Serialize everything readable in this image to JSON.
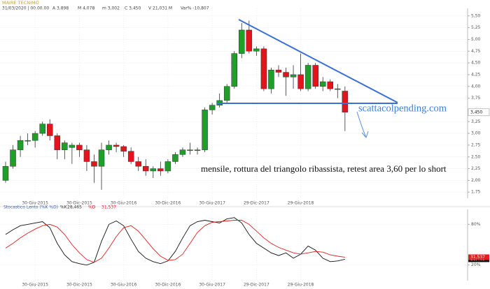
{
  "header": {
    "instrument": "MAIRE TECNIMO",
    "date": "31/03/2020 | 00.00.00",
    "open": "A 3,898",
    "high": "M 4,078",
    "low": "m 3,002",
    "close": "C 3,450",
    "volume": "V 21,031 M",
    "change": "Var% -10,807"
  },
  "annotations": {
    "site": "scattacolpending.com",
    "note": "mensile, rottura del triangolo ribassista, retest area 3,60 per lo short"
  },
  "chart_data": [
    {
      "type": "candlestick",
      "categories": [
        null,
        null,
        null,
        null,
        "30-Giu-2015",
        null,
        null,
        null,
        null,
        null,
        "30-Dic-2015",
        null,
        null,
        null,
        null,
        null,
        "30-Giu-2016",
        null,
        null,
        null,
        null,
        null,
        "30-Dic-2016",
        null,
        null,
        null,
        null,
        null,
        "30-Giu-2017",
        null,
        null,
        null,
        null,
        null,
        "29-Dic-2017",
        null,
        null,
        null,
        null,
        null,
        "29-Giu-2018",
        null,
        null,
        null,
        null,
        null,
        null
      ],
      "open": [
        2.0,
        2.3,
        2.65,
        2.85,
        2.85,
        3.0,
        3.2,
        2.95,
        2.65,
        2.7,
        2.75,
        2.65,
        2.4,
        2.3,
        2.65,
        2.75,
        2.72,
        2.62,
        2.4,
        2.3,
        2.2,
        2.25,
        2.2,
        2.4,
        2.55,
        2.65,
        2.65,
        2.65,
        3.5,
        3.6,
        3.7,
        4.0,
        4.7,
        5.2,
        4.75,
        4.8,
        3.95,
        4.35,
        4.3,
        4.2,
        4.25,
        3.95,
        4.45,
        4.0,
        4.1,
        3.95,
        3.9
      ],
      "high": [
        2.4,
        2.75,
        2.95,
        3.0,
        3.05,
        3.25,
        3.3,
        3.0,
        2.85,
        2.8,
        2.8,
        2.75,
        2.55,
        2.8,
        2.85,
        2.8,
        2.75,
        2.7,
        2.5,
        2.45,
        2.3,
        2.4,
        2.45,
        2.6,
        2.7,
        2.8,
        2.7,
        3.55,
        3.65,
        3.85,
        4.05,
        4.75,
        5.35,
        5.4,
        4.85,
        4.85,
        4.4,
        4.45,
        4.4,
        4.45,
        4.7,
        4.5,
        4.5,
        4.2,
        4.15,
        4.05,
        4.0
      ],
      "low": [
        1.95,
        2.25,
        2.5,
        2.75,
        2.7,
        2.95,
        2.85,
        2.45,
        2.45,
        2.35,
        2.5,
        2.2,
        1.95,
        1.8,
        2.55,
        2.6,
        2.5,
        2.35,
        2.2,
        2.1,
        2.05,
        2.1,
        2.15,
        2.35,
        2.5,
        2.55,
        2.55,
        2.6,
        3.4,
        3.55,
        3.65,
        3.95,
        4.6,
        4.7,
        4.65,
        3.9,
        3.85,
        4.2,
        3.8,
        3.95,
        3.9,
        3.9,
        3.95,
        3.9,
        3.9,
        3.75,
        3.05
      ],
      "close": [
        2.3,
        2.65,
        2.85,
        2.85,
        3.0,
        3.2,
        2.95,
        2.65,
        2.8,
        2.75,
        2.65,
        2.4,
        2.3,
        2.65,
        2.75,
        2.72,
        2.62,
        2.4,
        2.3,
        2.2,
        2.25,
        2.2,
        2.4,
        2.55,
        2.65,
        2.65,
        2.65,
        3.5,
        3.6,
        3.7,
        4.0,
        4.7,
        5.2,
        4.75,
        4.8,
        3.95,
        4.35,
        4.3,
        4.2,
        4.25,
        3.95,
        4.45,
        4.0,
        4.1,
        3.95,
        3.95,
        3.45
      ],
      "value_labels": [
        null,
        null,
        null,
        null,
        null,
        null,
        null,
        null,
        null,
        null,
        null,
        null,
        null,
        null,
        null,
        null,
        null,
        null,
        null,
        null,
        null,
        null,
        null,
        null,
        null,
        null,
        null,
        null,
        null,
        null,
        null,
        null,
        null,
        null,
        null,
        null,
        null,
        null,
        null,
        null,
        null,
        null,
        null,
        null,
        null,
        null,
        "3,450"
      ],
      "up_color": "#1f9e2a",
      "down_color": "#e3141c",
      "ylim": [
        1.62,
        5.66
      ],
      "yticks": [
        {
          "value": 1.75,
          "label": "1,75"
        },
        {
          "value": 2,
          "label": "2,00"
        },
        {
          "value": 2.25,
          "label": "2,25"
        },
        {
          "value": 2.5,
          "label": "2,50"
        },
        {
          "value": 2.75,
          "label": "2,75"
        },
        {
          "value": 3,
          "label": "3,00"
        },
        {
          "value": 3.25,
          "label": "3,25"
        },
        {
          "value": 3.75,
          "label": "3,75"
        },
        {
          "value": 4,
          "label": "4,00"
        },
        {
          "value": 4.25,
          "label": "4,25"
        },
        {
          "value": 4.5,
          "label": "4,50"
        },
        {
          "value": 4.75,
          "label": "4,75"
        },
        {
          "value": 5,
          "label": "5,00"
        },
        {
          "value": 5.25,
          "label": "5,25"
        },
        {
          "value": 5.5,
          "label": "5,50"
        }
      ],
      "grid": true
    },
    {
      "type": "line",
      "title": "Stocastico Lento (%K %D)",
      "categories": [
        null,
        null,
        null,
        null,
        "30-Giu-2015",
        null,
        null,
        null,
        null,
        null,
        "30-Dic-2015",
        null,
        null,
        null,
        null,
        null,
        "30-Giu-2016",
        null,
        null,
        null,
        null,
        null,
        "30-Dic-2016",
        null,
        null,
        null,
        null,
        null,
        "30-Giu-2017",
        null,
        null,
        null,
        null,
        null,
        "29-Dic-2017",
        null,
        null,
        null,
        null,
        null,
        "29-Giu-2018",
        null,
        null,
        null,
        null,
        null,
        null
      ],
      "series": [
        {
          "name": "%K",
          "color": "#111111",
          "values": [
            65,
            72,
            78,
            80,
            82,
            84,
            75,
            52,
            35,
            25,
            22,
            20,
            24,
            55,
            80,
            85,
            78,
            58,
            40,
            30,
            25,
            22,
            26,
            40,
            60,
            78,
            84,
            86,
            84,
            82,
            88,
            90,
            82,
            65,
            52,
            45,
            38,
            34,
            38,
            30,
            36,
            48,
            42,
            30,
            25,
            26,
            28.465
          ],
          "value_labels": [
            null,
            null,
            null,
            null,
            null,
            null,
            null,
            null,
            null,
            null,
            null,
            null,
            null,
            null,
            null,
            null,
            null,
            null,
            null,
            null,
            null,
            null,
            null,
            null,
            null,
            null,
            null,
            null,
            null,
            null,
            null,
            null,
            null,
            null,
            null,
            null,
            null,
            null,
            null,
            null,
            null,
            null,
            null,
            null,
            null,
            null,
            "28,465"
          ]
        },
        {
          "name": "%D",
          "color": "#e02020",
          "values": [
            45,
            52,
            60,
            67,
            73,
            78,
            80,
            76,
            65,
            50,
            38,
            28,
            24,
            30,
            45,
            62,
            75,
            78,
            70,
            57,
            44,
            33,
            27,
            28,
            36,
            52,
            68,
            78,
            83,
            84,
            85,
            86,
            86,
            80,
            70,
            60,
            52,
            46,
            42,
            38,
            36,
            38,
            40,
            39,
            35,
            33,
            31.537
          ],
          "value_labels": [
            null,
            null,
            null,
            null,
            null,
            null,
            null,
            null,
            null,
            null,
            null,
            null,
            null,
            null,
            null,
            null,
            null,
            null,
            null,
            null,
            null,
            null,
            null,
            null,
            null,
            null,
            null,
            null,
            null,
            null,
            null,
            null,
            null,
            null,
            null,
            null,
            null,
            null,
            null,
            null,
            null,
            null,
            null,
            null,
            null,
            null,
            "31,537"
          ]
        }
      ],
      "ylim": [
        -3,
        102
      ],
      "yticks": [
        {
          "value": 20,
          "label": "20%"
        },
        {
          "value": 80,
          "label": "80%"
        }
      ],
      "grid": true
    }
  ]
}
